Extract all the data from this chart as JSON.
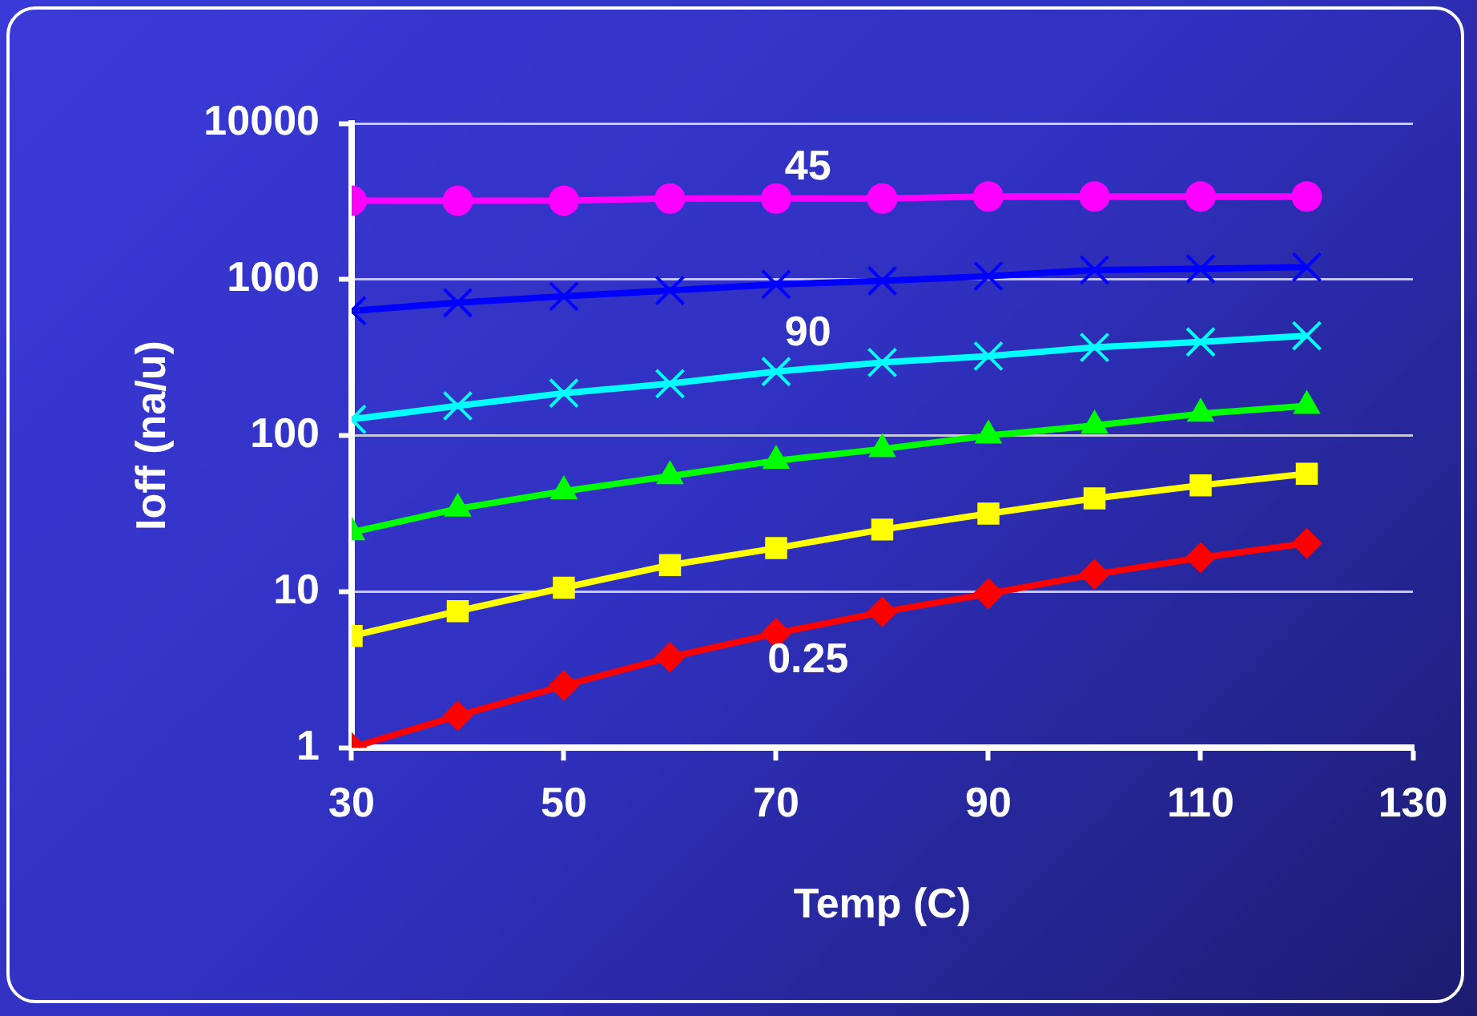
{
  "chart_data": {
    "type": "line",
    "xlabel": "Temp (C)",
    "ylabel": "Ioff (na/u)",
    "x": [
      30,
      40,
      50,
      60,
      70,
      80,
      90,
      100,
      110,
      120
    ],
    "series": [
      {
        "color": "#ff00ff",
        "marker": "circle",
        "values": [
          3200,
          3200,
          3200,
          3300,
          3300,
          3300,
          3400,
          3400,
          3400,
          3400
        ]
      },
      {
        "color": "#0000ff",
        "marker": "cross",
        "values": [
          630,
          710,
          780,
          850,
          930,
          980,
          1050,
          1150,
          1170,
          1200
        ]
      },
      {
        "color": "#00ffff",
        "marker": "cross",
        "values": [
          127,
          155,
          187,
          215,
          257,
          294,
          323,
          367,
          398,
          436
        ]
      },
      {
        "color": "#00ff00",
        "marker": "triangle",
        "values": [
          24,
          34,
          44,
          55,
          69,
          82,
          100,
          116,
          138,
          155
        ]
      },
      {
        "color": "#ffff00",
        "marker": "square",
        "values": [
          5.2,
          7.5,
          10.6,
          14.8,
          19,
          25,
          31.6,
          39.6,
          48,
          57
        ]
      },
      {
        "color": "#ff0000",
        "marker": "diamond",
        "values": [
          1,
          1.6,
          2.5,
          3.8,
          5.4,
          7.4,
          9.7,
          12.9,
          16.5,
          20.4
        ]
      }
    ],
    "annotations": [
      "45",
      "90",
      "0.25"
    ],
    "log": "y",
    "grid": "y",
    "legend": false,
    "xlim": [
      30,
      130
    ],
    "xticks": [
      30,
      50,
      70,
      90,
      110,
      130
    ],
    "ylim": [
      1,
      10000
    ],
    "yticks": [
      1,
      10,
      100,
      1000,
      10000
    ]
  }
}
